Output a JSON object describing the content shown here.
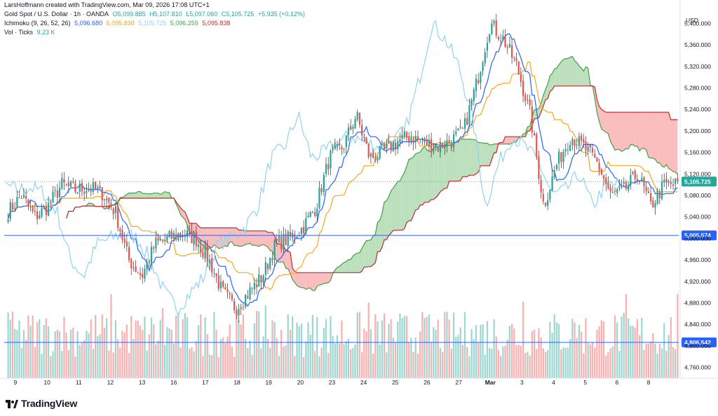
{
  "header": {
    "attribution": "LarsHoffmann created with TradingView.com, Mar 09, 2026 17:08 UTC+1",
    "symbol": "Gold Spot / U.S. Dollar · 1h · OANDA",
    "ohlc": {
      "o": "O5,099.885",
      "h": "H5,107.810",
      "l": "L5,097.060",
      "c": "C5,105.725",
      "chg": "+5.935 (+0.12%)"
    },
    "ichimoku": {
      "label": "Ichimoku (9, 26, 52, 26)",
      "v1": "5,096.680",
      "v2": "5,095.838",
      "v3": "5,105.725",
      "v4": "5,096.259",
      "v5": "5,095.838"
    },
    "vol": {
      "label": "Vol · Ticks",
      "value": "9.23 K"
    }
  },
  "currency": "USD",
  "brand": "TradingView",
  "colors": {
    "up": "#26a69a",
    "down": "#ef5350",
    "tenkan": "#2962ff",
    "kijun": "#f5a623",
    "chikou": "#8fd3f0",
    "spanA": "#43a047",
    "spanB": "#c62828",
    "cloud_up": "#a5d6a7",
    "cloud_down": "#f8a7a7",
    "hline": "#2962ff"
  },
  "chart_data": {
    "type": "candlestick",
    "title": "Gold Spot / U.S. Dollar · 1h · OANDA",
    "ylim": [
      4740,
      5420
    ],
    "yticks": [
      4760,
      4800,
      4840,
      4880,
      4920,
      4960,
      5000,
      5040,
      5080,
      5120,
      5160,
      5200,
      5240,
      5280,
      5320,
      5360,
      5400
    ],
    "ytick_labels": [
      "4,760.000",
      "4,800.000",
      "4,840.000",
      "4,880.000",
      "4,920.000",
      "4,960.000",
      "5,000.000",
      "5,040.000",
      "5,080.000",
      "5,120.000",
      "5,160.000",
      "5,200.000",
      "5,240.000",
      "5,280.000",
      "5,320.000",
      "5,360.000",
      "5,400.000"
    ],
    "xticks": [
      "9",
      "10",
      "11",
      "12",
      "13",
      "16",
      "17",
      "18",
      "19",
      "20",
      "23",
      "24",
      "25",
      "26",
      "27",
      "Mar",
      "3",
      "4",
      "5",
      "6",
      "8"
    ],
    "price_path": [
      5050,
      5080,
      5040,
      5060,
      5100,
      5090,
      5095,
      5085,
      5050,
      4960,
      4930,
      4990,
      5000,
      5010,
      5000,
      4960,
      4900,
      4870,
      4900,
      4930,
      4990,
      5000,
      5020,
      5060,
      5150,
      5170,
      5230,
      5150,
      5160,
      5180,
      5190,
      5180,
      5170,
      5180,
      5200,
      5290,
      5400,
      5370,
      5320,
      5230,
      5060,
      5140,
      5190,
      5170,
      5140,
      5080,
      5090,
      5120,
      5060,
      5100,
      5100
    ],
    "current_price": 5105.725,
    "current_price_label": "5,105.725",
    "horizontal_lines": [
      {
        "value": 5005.574,
        "label": "5,005.574"
      },
      {
        "value": 4806.542,
        "label": "4,806.542"
      }
    ],
    "volume_label": "Vol · Ticks",
    "volume_last": "9.23 K"
  }
}
